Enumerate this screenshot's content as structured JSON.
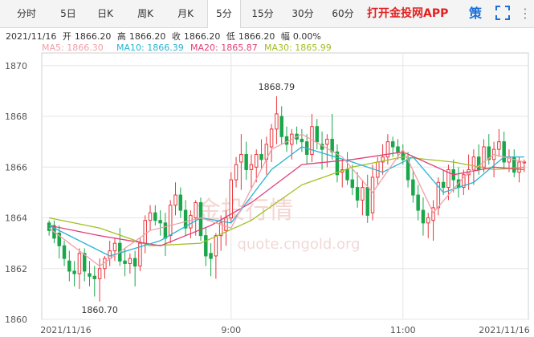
{
  "tabs": [
    "分时",
    "5日",
    "日K",
    "周K",
    "月K",
    "5分",
    "15分",
    "30分",
    "60分"
  ],
  "active_tab": "5分",
  "app_link": "打开金投网APP",
  "ce_icon_label": "策",
  "info": {
    "date": "2021/11/16",
    "open_label": "开",
    "open": "1866.20",
    "high_label": "高",
    "high": "1866.20",
    "close_label": "收",
    "close": "1866.20",
    "low_label": "低",
    "low": "1866.20",
    "change_label": "幅",
    "change": "0.00%"
  },
  "ma": {
    "ma5": "MA5: 1866.30",
    "ma10": "MA10: 1866.39",
    "ma20": "MA20: 1865.87",
    "ma30": "MA30: 1865.99"
  },
  "watermark": {
    "name": "金投行情",
    "url": "quote.cngold.org"
  },
  "colors": {
    "up": "#e8383d",
    "down": "#1aa64a",
    "ma5": "#f0a0a8",
    "ma10": "#28b4d2",
    "ma20": "#e0407a",
    "ma30": "#a0c020",
    "grid": "#e6e6e6",
    "app_link": "#e02020",
    "ce_icon": "#1a6fd8"
  },
  "chart_data": {
    "type": "candlestick",
    "ylim": [
      1860,
      1870.5
    ],
    "yticks": [
      1860,
      1862,
      1864,
      1866,
      1868,
      1870
    ],
    "xticks": [
      "2021/11/16",
      "9:00",
      "11:00",
      "2021/11/16"
    ],
    "high_label": "1868.79",
    "low_label": "1860.70",
    "ohlc": [
      [
        1863.8,
        1863.9,
        1863.3,
        1863.5
      ],
      [
        1863.7,
        1863.9,
        1863.0,
        1863.2
      ],
      [
        1863.4,
        1863.7,
        1862.4,
        1862.9
      ],
      [
        1862.9,
        1863.1,
        1862.1,
        1862.4
      ],
      [
        1862.3,
        1862.7,
        1861.5,
        1861.9
      ],
      [
        1861.9,
        1862.3,
        1861.3,
        1861.8
      ],
      [
        1861.8,
        1862.8,
        1861.2,
        1862.6
      ],
      [
        1862.6,
        1862.8,
        1861.5,
        1861.9
      ],
      [
        1861.8,
        1862.3,
        1861.3,
        1861.7
      ],
      [
        1861.7,
        1862.1,
        1860.9,
        1861.6
      ],
      [
        1861.6,
        1862.4,
        1860.7,
        1862.0
      ],
      [
        1862.0,
        1862.5,
        1861.6,
        1862.4
      ],
      [
        1862.4,
        1863.1,
        1862.1,
        1862.7
      ],
      [
        1862.7,
        1863.2,
        1862.3,
        1863.0
      ],
      [
        1863.0,
        1863.6,
        1862.1,
        1862.3
      ],
      [
        1862.3,
        1862.8,
        1861.7,
        1862.2
      ],
      [
        1862.2,
        1862.6,
        1861.8,
        1862.4
      ],
      [
        1862.4,
        1862.7,
        1861.3,
        1862.1
      ],
      [
        1862.1,
        1863.2,
        1861.9,
        1863.0
      ],
      [
        1863.0,
        1864.1,
        1862.6,
        1863.9
      ],
      [
        1863.9,
        1864.5,
        1863.5,
        1864.2
      ],
      [
        1864.2,
        1864.5,
        1863.7,
        1863.9
      ],
      [
        1863.9,
        1864.3,
        1863.3,
        1863.8
      ],
      [
        1863.8,
        1864.2,
        1862.5,
        1863.2
      ],
      [
        1863.3,
        1864.7,
        1863.0,
        1864.5
      ],
      [
        1864.5,
        1865.4,
        1864.1,
        1864.9
      ],
      [
        1864.9,
        1865.2,
        1864.0,
        1864.3
      ],
      [
        1864.3,
        1864.7,
        1863.3,
        1863.6
      ],
      [
        1863.6,
        1864.3,
        1863.2,
        1864.1
      ],
      [
        1864.0,
        1864.7,
        1863.3,
        1864.6
      ],
      [
        1864.6,
        1864.8,
        1863.1,
        1863.3
      ],
      [
        1863.3,
        1863.6,
        1862.1,
        1862.5
      ],
      [
        1862.6,
        1863.0,
        1861.7,
        1862.4
      ],
      [
        1862.5,
        1863.4,
        1861.6,
        1863.3
      ],
      [
        1863.3,
        1864.1,
        1862.7,
        1863.8
      ],
      [
        1863.5,
        1864.3,
        1862.9,
        1864.0
      ],
      [
        1864.0,
        1865.8,
        1863.8,
        1865.5
      ],
      [
        1865.5,
        1866.4,
        1865.2,
        1866.1
      ],
      [
        1866.2,
        1867.3,
        1865.1,
        1866.5
      ],
      [
        1866.5,
        1867.0,
        1865.5,
        1865.9
      ],
      [
        1865.9,
        1866.5,
        1865.1,
        1866.1
      ],
      [
        1866.0,
        1866.7,
        1865.4,
        1866.5
      ],
      [
        1866.5,
        1867.1,
        1865.9,
        1866.3
      ],
      [
        1866.3,
        1867.2,
        1865.7,
        1866.9
      ],
      [
        1866.8,
        1867.7,
        1866.2,
        1867.5
      ],
      [
        1867.5,
        1868.79,
        1866.9,
        1868.1
      ],
      [
        1868.0,
        1868.4,
        1866.9,
        1867.2
      ],
      [
        1867.2,
        1867.6,
        1866.6,
        1866.9
      ],
      [
        1866.9,
        1867.5,
        1866.3,
        1867.3
      ],
      [
        1867.3,
        1867.6,
        1866.9,
        1867.1
      ],
      [
        1867.1,
        1867.5,
        1866.6,
        1867.0
      ],
      [
        1867.0,
        1867.3,
        1866.1,
        1866.5
      ],
      [
        1866.5,
        1868.1,
        1866.2,
        1867.6
      ],
      [
        1867.6,
        1867.9,
        1866.7,
        1867.0
      ],
      [
        1866.9,
        1867.4,
        1865.9,
        1866.7
      ],
      [
        1866.9,
        1867.3,
        1866.0,
        1867.1
      ],
      [
        1867.1,
        1868.1,
        1866.3,
        1866.6
      ],
      [
        1866.6,
        1866.9,
        1865.4,
        1865.7
      ],
      [
        1865.8,
        1866.3,
        1865.2,
        1865.9
      ],
      [
        1865.9,
        1866.6,
        1865.3,
        1865.5
      ],
      [
        1865.5,
        1866.1,
        1864.9,
        1865.2
      ],
      [
        1865.2,
        1865.8,
        1864.4,
        1864.7
      ],
      [
        1864.7,
        1865.5,
        1864.1,
        1865.2
      ],
      [
        1865.2,
        1865.7,
        1863.8,
        1864.1
      ],
      [
        1864.2,
        1866.1,
        1863.9,
        1865.6
      ],
      [
        1865.6,
        1866.4,
        1865.3,
        1866.2
      ],
      [
        1866.2,
        1866.9,
        1865.7,
        1866.4
      ],
      [
        1866.4,
        1867.3,
        1866.1,
        1867.0
      ],
      [
        1867.0,
        1867.2,
        1866.4,
        1866.8
      ],
      [
        1866.8,
        1867.1,
        1866.3,
        1866.6
      ],
      [
        1866.6,
        1866.9,
        1866.1,
        1866.3
      ],
      [
        1866.3,
        1866.6,
        1865.2,
        1865.5
      ],
      [
        1865.5,
        1865.9,
        1864.6,
        1864.9
      ],
      [
        1864.9,
        1865.3,
        1863.9,
        1864.3
      ],
      [
        1864.3,
        1864.8,
        1863.3,
        1863.8
      ],
      [
        1863.8,
        1864.2,
        1863.2,
        1864.0
      ],
      [
        1863.9,
        1864.7,
        1863.1,
        1864.4
      ],
      [
        1864.4,
        1865.6,
        1864.1,
        1865.4
      ],
      [
        1865.4,
        1865.9,
        1864.9,
        1865.2
      ],
      [
        1865.2,
        1866.1,
        1864.7,
        1865.9
      ],
      [
        1865.9,
        1866.3,
        1865.0,
        1865.5
      ],
      [
        1865.5,
        1866.0,
        1864.8,
        1865.2
      ],
      [
        1865.2,
        1865.9,
        1864.9,
        1865.7
      ],
      [
        1865.7,
        1866.5,
        1865.1,
        1865.9
      ],
      [
        1865.9,
        1866.7,
        1865.3,
        1866.4
      ],
      [
        1866.4,
        1866.9,
        1865.7,
        1865.9
      ],
      [
        1866.0,
        1867.1,
        1865.8,
        1866.8
      ],
      [
        1866.8,
        1867.3,
        1866.1,
        1866.3
      ],
      [
        1866.3,
        1867.0,
        1865.6,
        1866.7
      ],
      [
        1866.7,
        1867.5,
        1866.4,
        1867.0
      ],
      [
        1867.0,
        1867.4,
        1865.9,
        1866.2
      ],
      [
        1866.2,
        1866.7,
        1865.8,
        1866.4
      ],
      [
        1866.4,
        1866.7,
        1865.6,
        1865.8
      ],
      [
        1865.8,
        1866.4,
        1865.4,
        1866.2
      ],
      [
        1866.2,
        1866.3,
        1865.8,
        1866.2
      ]
    ],
    "ma_series": {
      "ma5": [
        [
          0,
          1863.6
        ],
        [
          10,
          1862.1
        ],
        [
          20,
          1863.5
        ],
        [
          30,
          1864.0
        ],
        [
          36,
          1863.6
        ],
        [
          44,
          1866.7
        ],
        [
          50,
          1867.3
        ],
        [
          58,
          1866.4
        ],
        [
          64,
          1865.0
        ],
        [
          70,
          1866.7
        ],
        [
          76,
          1864.2
        ],
        [
          82,
          1865.6
        ],
        [
          88,
          1866.5
        ],
        [
          94,
          1866.2
        ]
      ],
      "ma10": [
        [
          0,
          1863.7
        ],
        [
          12,
          1862.5
        ],
        [
          22,
          1863.1
        ],
        [
          30,
          1864.0
        ],
        [
          36,
          1863.8
        ],
        [
          44,
          1865.9
        ],
        [
          50,
          1866.8
        ],
        [
          60,
          1866.2
        ],
        [
          66,
          1865.8
        ],
        [
          72,
          1866.4
        ],
        [
          78,
          1865.0
        ],
        [
          84,
          1865.4
        ],
        [
          90,
          1866.4
        ],
        [
          94,
          1866.4
        ]
      ],
      "ma20": [
        [
          0,
          1863.7
        ],
        [
          10,
          1863.3
        ],
        [
          22,
          1862.9
        ],
        [
          32,
          1863.7
        ],
        [
          40,
          1864.6
        ],
        [
          50,
          1866.1
        ],
        [
          60,
          1866.3
        ],
        [
          70,
          1866.6
        ],
        [
          80,
          1865.7
        ],
        [
          88,
          1866.0
        ],
        [
          94,
          1865.9
        ]
      ],
      "ma30": [
        [
          0,
          1864.0
        ],
        [
          10,
          1863.6
        ],
        [
          20,
          1862.9
        ],
        [
          30,
          1863.0
        ],
        [
          40,
          1863.9
        ],
        [
          50,
          1865.3
        ],
        [
          60,
          1866.0
        ],
        [
          70,
          1866.4
        ],
        [
          80,
          1866.2
        ],
        [
          88,
          1865.9
        ],
        [
          94,
          1866.0
        ]
      ]
    }
  }
}
